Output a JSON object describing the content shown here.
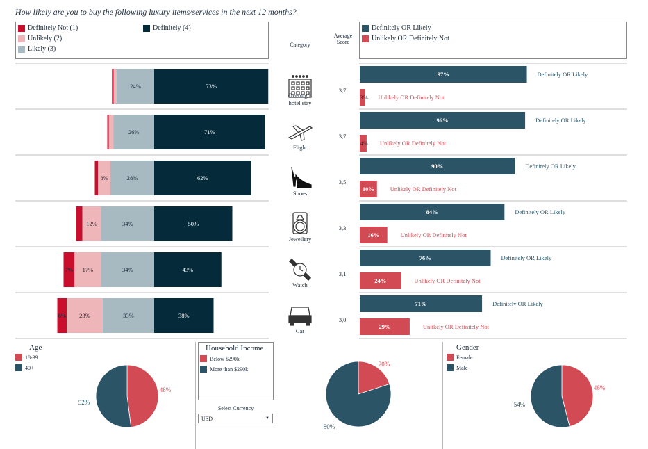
{
  "title": "How likely are you to buy the following luxury items/services in the next 12 months?",
  "headers": {
    "category": "Category",
    "avg_score": "Average Score"
  },
  "colors": {
    "definitely_not": "#c8102e",
    "unlikely": "#efb6ba",
    "likely": "#a7b9c1",
    "definitely": "#052a3a",
    "agg_likely": "#2b5466",
    "agg_not": "#d24b54"
  },
  "likelihood_legend": {
    "definitely_not": "Definitely Not (1)",
    "unlikely": "Unlikely (2)",
    "likely": "Likely (3)",
    "definitely": "Definitely (4)"
  },
  "agg_legend": {
    "likely": "Definitely OR Likely",
    "not": "Unlikely OR Definitely Not"
  },
  "chart_data": [
    {
      "type": "bar",
      "stacked": true,
      "orientation": "horizontal",
      "categories": [
        "Overnight hotel stay",
        "Flight",
        "Shoes",
        "Jewellery",
        "Watch",
        "Car"
      ],
      "icons": [
        "hotel-icon",
        "airplane-icon",
        "high-heel-shoe-icon",
        "ring-icon",
        "wristwatch-icon",
        "car-icon"
      ],
      "series": [
        {
          "name": "Definitely Not (1)",
          "values": [
            1,
            1,
            2,
            4,
            7,
            6
          ]
        },
        {
          "name": "Unlikely (2)",
          "values": [
            2,
            3,
            8,
            12,
            17,
            23
          ]
        },
        {
          "name": "Likely (3)",
          "values": [
            24,
            26,
            28,
            34,
            34,
            33
          ]
        },
        {
          "name": "Definitely (4)",
          "values": [
            73,
            71,
            62,
            50,
            43,
            38
          ]
        }
      ],
      "labels": [
        [
          "",
          "",
          "24%",
          "73%"
        ],
        [
          "",
          "",
          "26%",
          "71%"
        ],
        [
          "",
          "8%",
          "28%",
          "62%"
        ],
        [
          "",
          "12%",
          "34%",
          "50%"
        ],
        [
          "7%",
          "17%",
          "34%",
          "43%"
        ],
        [
          "6%",
          "23%",
          "33%",
          "38%"
        ]
      ],
      "avg_scores": [
        "3,7",
        "3,7",
        "3,5",
        "3,3",
        "3,1",
        "3,0"
      ]
    },
    {
      "type": "bar",
      "orientation": "horizontal",
      "categories": [
        "Overnight hotel stay",
        "Flight",
        "Shoes",
        "Jewellery",
        "Watch",
        "Car"
      ],
      "series": [
        {
          "name": "Definitely OR Likely",
          "values": [
            97,
            96,
            90,
            84,
            76,
            71
          ],
          "labels": [
            "97%",
            "96%",
            "90%",
            "84%",
            "76%",
            "71%"
          ]
        },
        {
          "name": "Unlikely OR Definitely Not",
          "values": [
            3,
            4,
            10,
            16,
            24,
            29
          ],
          "labels": [
            "3%",
            "4%",
            "10%",
            "16%",
            "24%",
            "29%"
          ]
        }
      ]
    },
    {
      "type": "pie",
      "title": "Age",
      "legend": [
        "18-39",
        "40+"
      ],
      "values": [
        48,
        52
      ],
      "labels": [
        "48%",
        "52%"
      ]
    },
    {
      "type": "pie",
      "title": "Household Income",
      "legend": [
        "Below $290k",
        "More than $290k"
      ],
      "values": [
        20,
        80
      ],
      "labels": [
        "20%",
        "80%"
      ]
    },
    {
      "type": "pie",
      "title": "Gender",
      "legend": [
        "Female",
        "Male"
      ],
      "values": [
        46,
        54
      ],
      "labels": [
        "46%",
        "54%"
      ]
    }
  ],
  "currency": {
    "label": "Select Currency",
    "value": "USD"
  }
}
